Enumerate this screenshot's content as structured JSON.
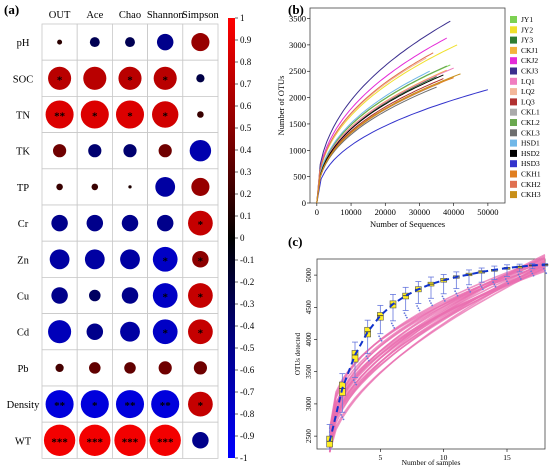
{
  "colors": {
    "colorbar_stops": [
      "#0000ff",
      "#00008b",
      "#000000",
      "#8b0000",
      "#ff0000"
    ],
    "line_colors": [
      "#7cd152",
      "#f0e02c",
      "#2e7d32",
      "#f2b33d",
      "#e42bd8",
      "#3b2e8e",
      "#f07dbf",
      "#f3b79a",
      "#b03030",
      "#aaaaaa",
      "#6aa84f",
      "#6e6e6e",
      "#6fb7e8",
      "#000000",
      "#3333cc",
      "#e07e20",
      "#e07050",
      "#c88f18"
    ],
    "rare_pink": "#ea6fb0",
    "box_fill": "#ffee22",
    "box_whisker": "#6677dd",
    "trend_blue": "#1133cc"
  },
  "panel_a": {
    "label": "(a)",
    "columns": [
      "OUT",
      "Ace",
      "Chao",
      "Shannon",
      "Simpson"
    ],
    "rows": [
      "pH",
      "SOC",
      "TN",
      "TK",
      "TP",
      "Cr",
      "Zn",
      "Cu",
      "Cd",
      "Pb",
      "Density",
      "WT"
    ]
  },
  "panel_b": {
    "label": "(b)"
  },
  "panel_c": {
    "label": "(c)"
  },
  "chart_data": [
    {
      "type": "heatmap",
      "columns": [
        "OUT",
        "Ace",
        "Chao",
        "Shannon",
        "Simpson"
      ],
      "rows": [
        "pH",
        "SOC",
        "TN",
        "TK",
        "TP",
        "Cr",
        "Zn",
        "Cu",
        "Cd",
        "Pb",
        "Density",
        "WT"
      ],
      "values": [
        [
          0.15,
          -0.3,
          -0.3,
          -0.5,
          0.55
        ],
        [
          0.7,
          0.7,
          0.7,
          0.7,
          -0.25
        ],
        [
          0.85,
          0.85,
          0.85,
          0.8,
          0.2
        ],
        [
          0.4,
          -0.4,
          -0.4,
          0.4,
          -0.65
        ],
        [
          0.2,
          0.2,
          0.1,
          -0.6,
          0.55
        ],
        [
          -0.5,
          -0.5,
          -0.5,
          -0.5,
          0.75
        ],
        [
          -0.6,
          -0.6,
          -0.6,
          -0.75,
          0.5
        ],
        [
          -0.5,
          -0.35,
          -0.5,
          -0.75,
          0.75
        ],
        [
          -0.7,
          -0.5,
          -0.6,
          -0.75,
          0.75
        ],
        [
          0.25,
          0.35,
          0.35,
          0.4,
          0.4
        ],
        [
          -0.85,
          -0.85,
          -0.85,
          -0.85,
          0.75
        ],
        [
          0.95,
          0.95,
          0.95,
          0.95,
          -0.5
        ]
      ],
      "stars": [
        [
          "",
          "",
          "",
          "",
          ""
        ],
        [
          "*",
          "",
          "*",
          "*",
          ""
        ],
        [
          "**",
          "*",
          "*",
          "*",
          ""
        ],
        [
          "",
          "",
          "",
          "",
          ""
        ],
        [
          "",
          "",
          "",
          "",
          ""
        ],
        [
          "",
          "",
          "",
          "",
          "*"
        ],
        [
          "",
          "",
          "",
          "*",
          "*"
        ],
        [
          "",
          "",
          "",
          "*",
          "*"
        ],
        [
          "",
          "",
          "",
          "*",
          "*"
        ],
        [
          "",
          "",
          "",
          "",
          ""
        ],
        [
          "**",
          "*",
          "**",
          "**",
          "*"
        ],
        [
          "***",
          "***",
          "***",
          "***",
          ""
        ]
      ],
      "colorbar_range": [
        -1,
        1
      ],
      "colorbar_ticks": [
        "1",
        "0.9",
        "0.8",
        "0.7",
        "0.6",
        "0.5",
        "0.4",
        "0.3",
        "0.2",
        "0.1",
        "0",
        "-0.1",
        "-0.2",
        "-0.3",
        "-0.4",
        "-0.5",
        "-0.6",
        "-0.7",
        "-0.8",
        "-0.9",
        "-1"
      ]
    },
    {
      "type": "line",
      "xlabel": "Number of Sequences",
      "ylabel": "Number of OTUs",
      "xlim": [
        -2000,
        55000
      ],
      "ylim": [
        0,
        3700
      ],
      "xticks": [
        0,
        10000,
        20000,
        30000,
        40000,
        50000
      ],
      "yticks": [
        0,
        500,
        1000,
        1500,
        2000,
        2500,
        3000,
        3500
      ],
      "legend_position": "right",
      "series": [
        {
          "name": "JY1",
          "max_x": 39000,
          "max_y": 2620
        },
        {
          "name": "JY2",
          "max_x": 41000,
          "max_y": 3000
        },
        {
          "name": "JY3",
          "max_x": 35000,
          "max_y": 2400
        },
        {
          "name": "CKJ1",
          "max_x": 38000,
          "max_y": 2520
        },
        {
          "name": "CKJ2",
          "max_x": 38000,
          "max_y": 3130
        },
        {
          "name": "CKJ3",
          "max_x": 39000,
          "max_y": 3450
        },
        {
          "name": "LQ1",
          "max_x": 40000,
          "max_y": 2560
        },
        {
          "name": "LQ2",
          "max_x": 32000,
          "max_y": 2750
        },
        {
          "name": "LQ3",
          "max_x": 37000,
          "max_y": 2360
        },
        {
          "name": "CKL1",
          "max_x": 36000,
          "max_y": 2270
        },
        {
          "name": "CKL2",
          "max_x": 38000,
          "max_y": 2600
        },
        {
          "name": "CKL3",
          "max_x": 35000,
          "max_y": 2200
        },
        {
          "name": "HSD1",
          "max_x": 33000,
          "max_y": 2500
        },
        {
          "name": "HSD2",
          "max_x": 37000,
          "max_y": 2430
        },
        {
          "name": "HSD3",
          "max_x": 50000,
          "max_y": 2150
        },
        {
          "name": "CKH1",
          "max_x": 40000,
          "max_y": 2380
        },
        {
          "name": "CKH2",
          "max_x": 34000,
          "max_y": 2850
        },
        {
          "name": "CKH3",
          "max_x": 42000,
          "max_y": 2450
        }
      ]
    },
    {
      "type": "box",
      "xlabel": "Number of samples",
      "ylabel": "OTUs detected",
      "xlim": [
        0,
        18
      ],
      "ylim": [
        2300,
        5250
      ],
      "xticks": [
        5,
        10,
        15
      ],
      "yticks": [
        2500,
        3000,
        3500,
        4000,
        4500,
        5000
      ],
      "x": [
        1,
        2,
        3,
        4,
        5,
        6,
        7,
        8,
        9,
        10,
        11,
        12,
        13,
        14,
        15,
        16,
        17,
        18
      ],
      "median": [
        2420,
        3240,
        3760,
        4120,
        4370,
        4550,
        4680,
        4780,
        4860,
        4920,
        4970,
        5010,
        5050,
        5080,
        5110,
        5130,
        5150,
        5160
      ],
      "q1": [
        2330,
        3130,
        3650,
        4040,
        4300,
        4490,
        4630,
        4740,
        4830,
        4890,
        4950,
        4990,
        5030,
        5060,
        5090,
        5110,
        5140,
        5150
      ],
      "q3": [
        2500,
        3340,
        3830,
        4190,
        4420,
        4600,
        4720,
        4820,
        4890,
        4950,
        4990,
        5030,
        5070,
        5090,
        5120,
        5140,
        5160,
        5170
      ],
      "whisker_low": [
        2300,
        2870,
        3410,
        3780,
        4090,
        4290,
        4450,
        4560,
        4640,
        4710,
        4790,
        4850,
        4890,
        4930,
        4980,
        5050,
        5100,
        5140
      ],
      "whisker_high": [
        2680,
        3470,
        3960,
        4300,
        4530,
        4700,
        4810,
        4900,
        4970,
        5010,
        5050,
        5080,
        5110,
        5140,
        5160,
        5170,
        5180,
        5180
      ]
    }
  ]
}
